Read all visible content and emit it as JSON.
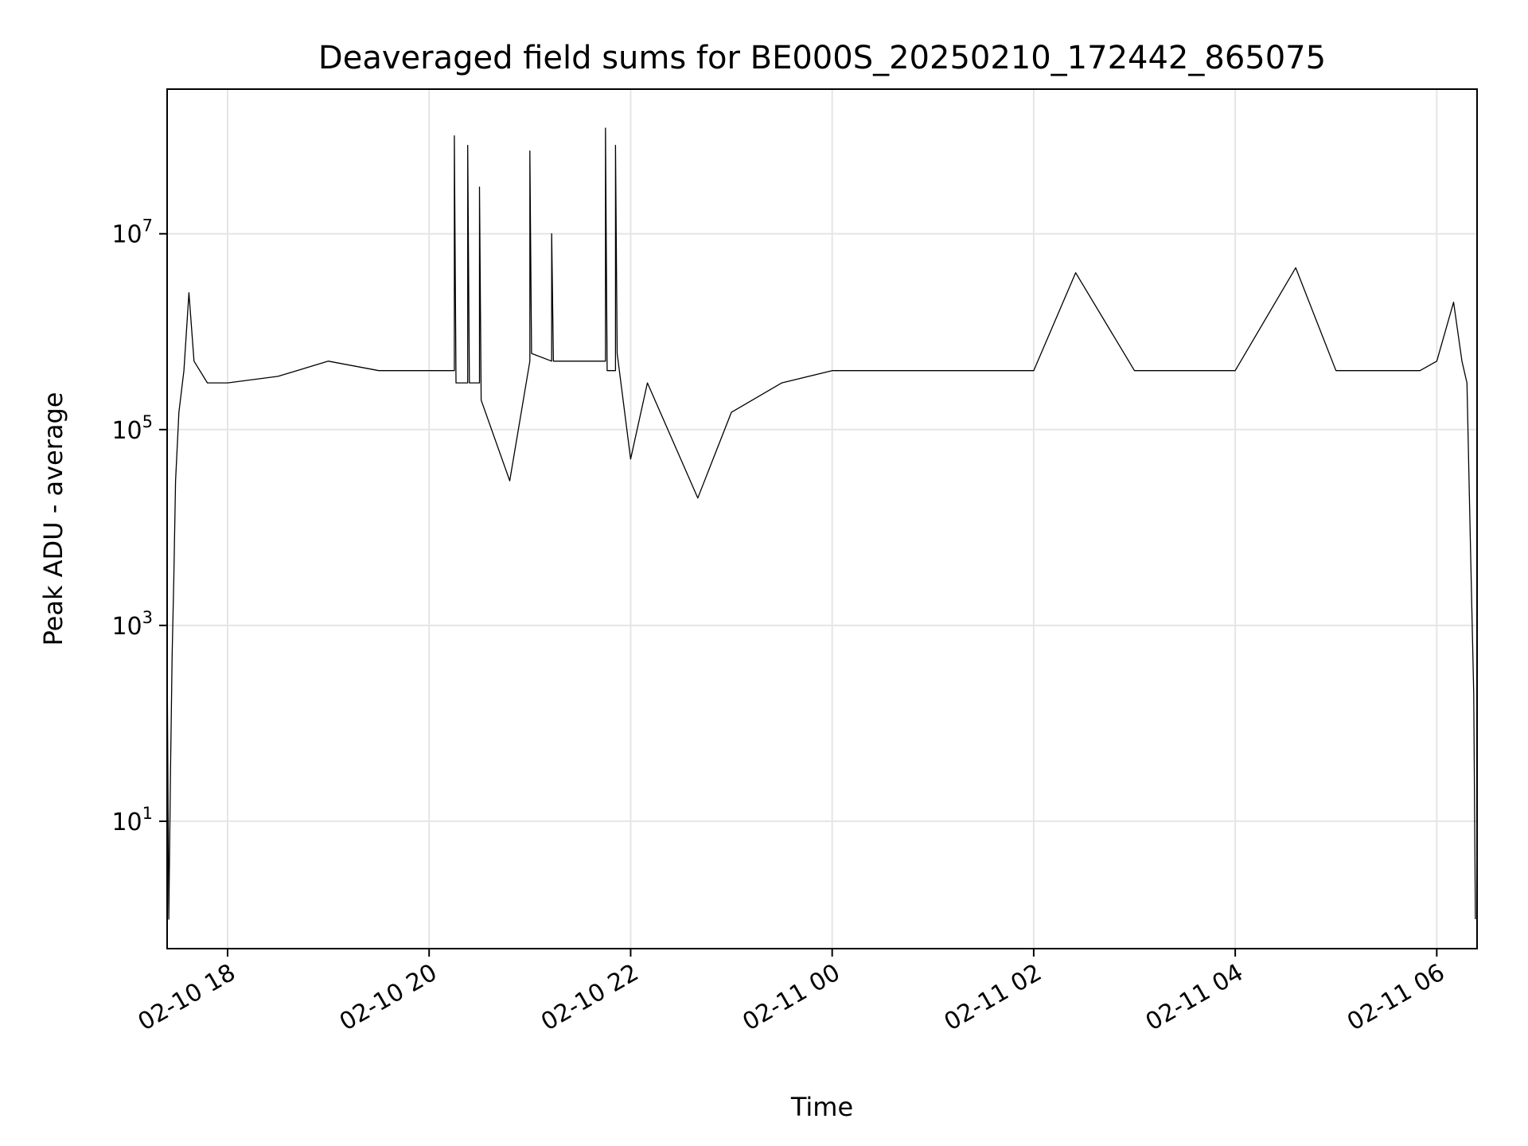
{
  "chart_data": {
    "type": "line",
    "title": "Deaveraged field sums for BE000S_20250210_172442_865075",
    "xlabel": "Time",
    "ylabel": "Peak ADU - average",
    "y_scale": "log",
    "grid": true,
    "line_color": "#000000",
    "grid_color": "#e5e5e5",
    "xlim": [
      "2025-02-10 17:24",
      "2025-02-11 06:24"
    ],
    "ylim": [
      0.5,
      300000000
    ],
    "x_ticks": [
      {
        "t": "2025-02-10 18:00",
        "label": "02-10 18"
      },
      {
        "t": "2025-02-10 20:00",
        "label": "02-10 20"
      },
      {
        "t": "2025-02-10 22:00",
        "label": "02-10 22"
      },
      {
        "t": "2025-02-11 00:00",
        "label": "02-11 00"
      },
      {
        "t": "2025-02-11 02:00",
        "label": "02-11 02"
      },
      {
        "t": "2025-02-11 04:00",
        "label": "02-11 04"
      },
      {
        "t": "2025-02-11 06:00",
        "label": "02-11 06"
      }
    ],
    "y_ticks": [
      {
        "value": 10,
        "base": "10",
        "exp": "1"
      },
      {
        "value": 1000,
        "base": "10",
        "exp": "3"
      },
      {
        "value": 100000,
        "base": "10",
        "exp": "5"
      },
      {
        "value": 10000000,
        "base": "10",
        "exp": "7"
      }
    ],
    "series": [
      {
        "points": [
          [
            "2025-02-10 17:24",
            500
          ],
          [
            "2025-02-10 17:25",
            1
          ],
          [
            "2025-02-10 17:26",
            30
          ],
          [
            "2025-02-10 17:27",
            500
          ],
          [
            "2025-02-10 17:28",
            3000
          ],
          [
            "2025-02-10 17:29",
            30000
          ],
          [
            "2025-02-10 17:31",
            150000
          ],
          [
            "2025-02-10 17:34",
            400000
          ],
          [
            "2025-02-10 17:37",
            2500000
          ],
          [
            "2025-02-10 17:40",
            500000
          ],
          [
            "2025-02-10 17:48",
            300000
          ],
          [
            "2025-02-10 18:00",
            300000
          ],
          [
            "2025-02-10 18:30",
            350000
          ],
          [
            "2025-02-10 19:00",
            500000
          ],
          [
            "2025-02-10 19:30",
            400000
          ],
          [
            "2025-02-10 20:00",
            400000
          ],
          [
            "2025-02-10 20:15",
            400000
          ],
          [
            "2025-02-10 20:15",
            100000000
          ],
          [
            "2025-02-10 20:16",
            300000
          ],
          [
            "2025-02-10 20:23",
            300000
          ],
          [
            "2025-02-10 20:23",
            80000000
          ],
          [
            "2025-02-10 20:24",
            300000
          ],
          [
            "2025-02-10 20:30",
            300000
          ],
          [
            "2025-02-10 20:30",
            30000000
          ],
          [
            "2025-02-10 20:31",
            200000
          ],
          [
            "2025-02-10 20:48",
            30000
          ],
          [
            "2025-02-10 21:00",
            500000
          ],
          [
            "2025-02-10 21:00",
            70000000
          ],
          [
            "2025-02-10 21:01",
            600000
          ],
          [
            "2025-02-10 21:13",
            500000
          ],
          [
            "2025-02-10 21:13",
            10000000
          ],
          [
            "2025-02-10 21:14",
            500000
          ],
          [
            "2025-02-10 21:45",
            500000
          ],
          [
            "2025-02-10 21:45",
            120000000
          ],
          [
            "2025-02-10 21:46",
            400000
          ],
          [
            "2025-02-10 21:51",
            400000
          ],
          [
            "2025-02-10 21:51",
            80000000
          ],
          [
            "2025-02-10 21:52",
            600000
          ],
          [
            "2025-02-10 22:00",
            50000
          ],
          [
            "2025-02-10 22:10",
            300000
          ],
          [
            "2025-02-10 22:40",
            20000
          ],
          [
            "2025-02-10 23:00",
            150000
          ],
          [
            "2025-02-10 23:30",
            300000
          ],
          [
            "2025-02-11 00:00",
            400000
          ],
          [
            "2025-02-11 01:00",
            400000
          ],
          [
            "2025-02-11 02:00",
            400000
          ],
          [
            "2025-02-11 02:25",
            4000000
          ],
          [
            "2025-02-11 03:00",
            400000
          ],
          [
            "2025-02-11 04:00",
            400000
          ],
          [
            "2025-02-11 04:36",
            4500000
          ],
          [
            "2025-02-11 05:00",
            400000
          ],
          [
            "2025-02-11 05:50",
            400000
          ],
          [
            "2025-02-11 06:00",
            500000
          ],
          [
            "2025-02-11 06:10",
            2000000
          ],
          [
            "2025-02-11 06:15",
            500000
          ],
          [
            "2025-02-11 06:18",
            300000
          ],
          [
            "2025-02-11 06:20",
            7000
          ],
          [
            "2025-02-11 06:22",
            200
          ],
          [
            "2025-02-11 06:23",
            1
          ]
        ]
      }
    ]
  }
}
